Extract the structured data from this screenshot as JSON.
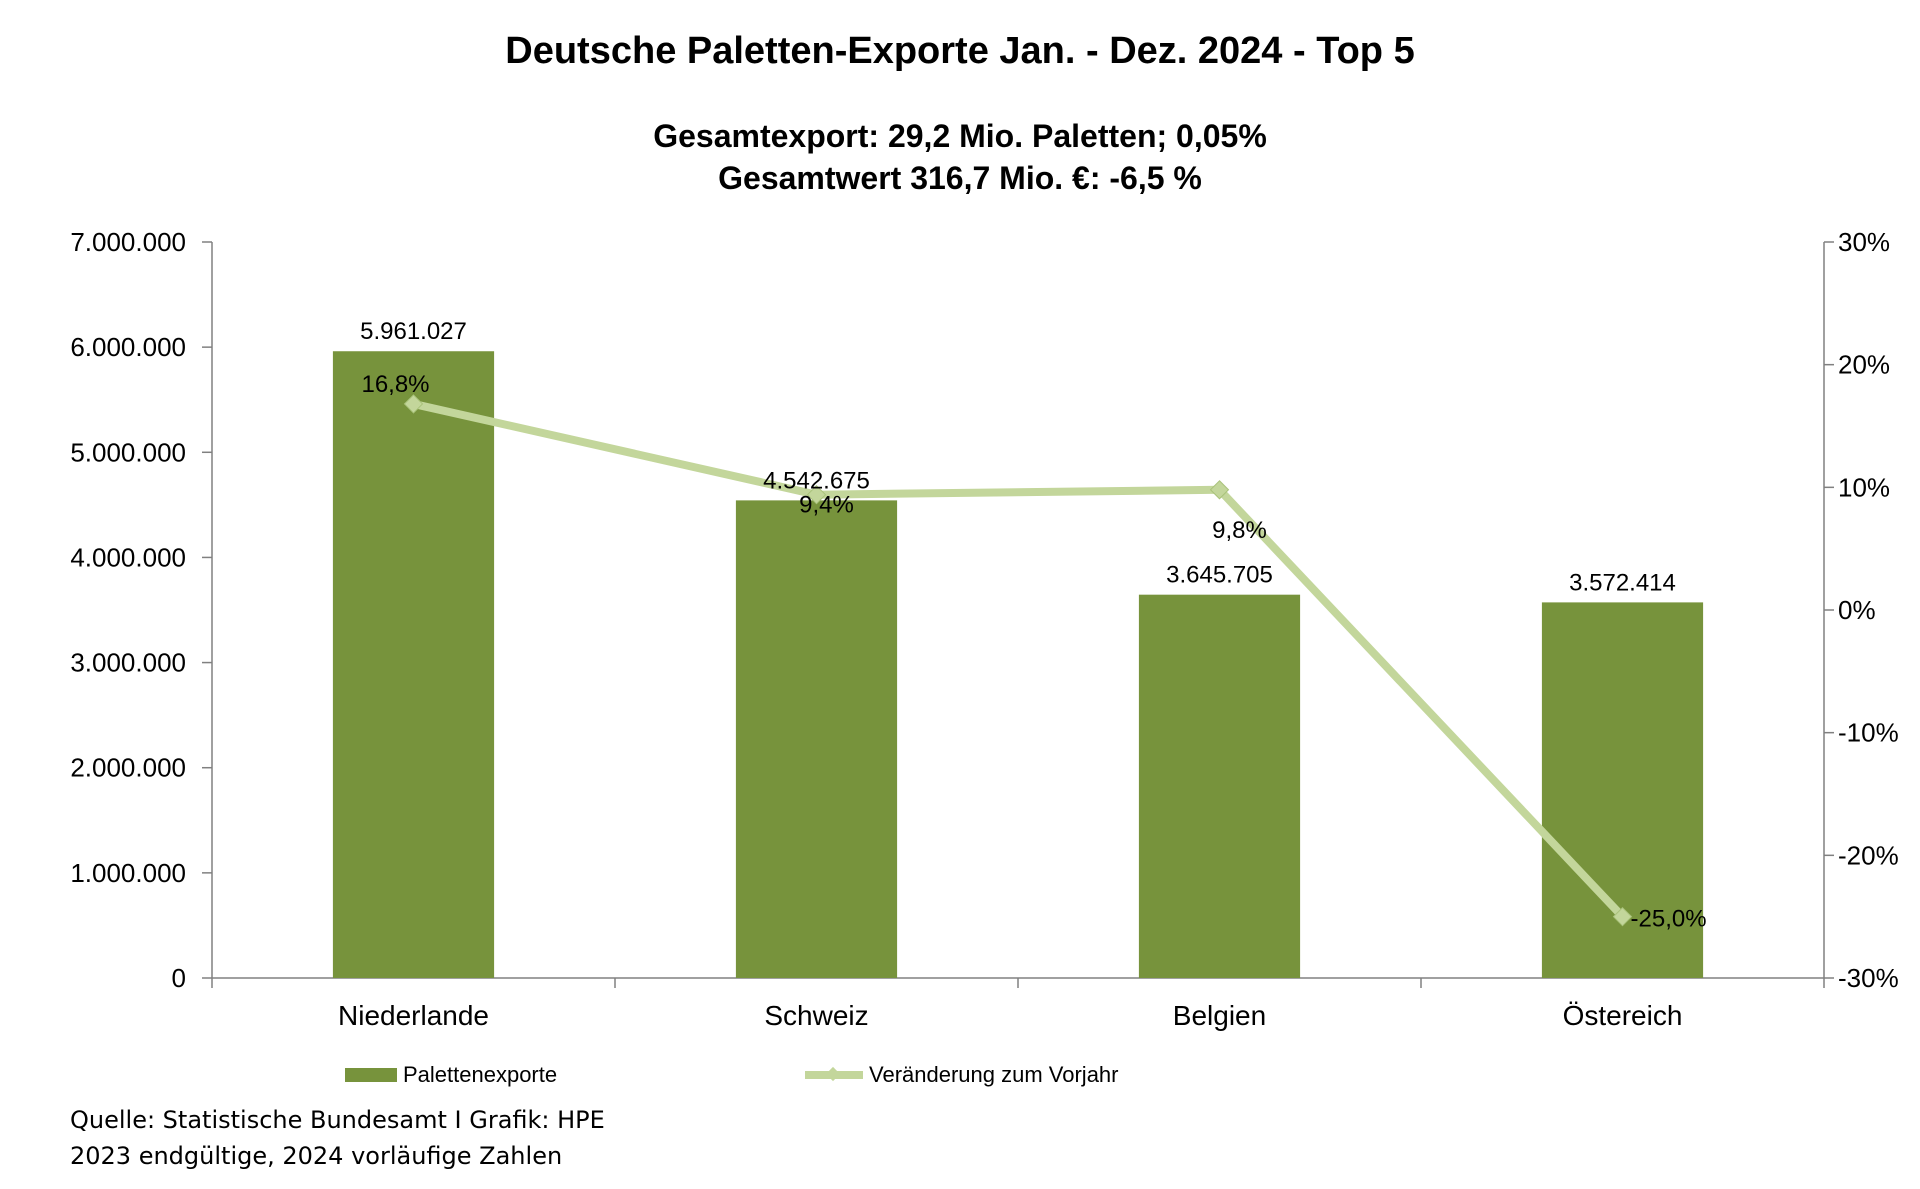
{
  "chart_data": {
    "type": "bar",
    "title": "Deutsche Paletten-Exporte Jan. - Dez. 2024 - Top 5",
    "subtitle_lines": [
      "Gesamtexport: 29,2 Mio. Paletten; 0,05%",
      "Gesamtwert 316,7 Mio. €: -6,5  %"
    ],
    "categories": [
      "Niederlande",
      "Schweiz",
      "Belgien",
      "Östereich"
    ],
    "series": [
      {
        "name": "Palettenexporte",
        "type": "bar",
        "axis": "left",
        "color": "#77933c",
        "values": [
          5961027,
          4542675,
          3645705,
          3572414
        ],
        "labels": [
          "5.961.027",
          "4.542.675",
          "3.645.705",
          "3.572.414"
        ]
      },
      {
        "name": "Veränderung zum Vorjahr",
        "type": "line",
        "axis": "right",
        "color": "#c3d69b",
        "values": [
          16.8,
          9.4,
          9.8,
          -25.0
        ],
        "labels": [
          "16,8%",
          "9,4%",
          "9,8%",
          "-25,0%"
        ]
      }
    ],
    "y_left": {
      "range": [
        0,
        7000000
      ],
      "ticks": [
        0,
        1000000,
        2000000,
        3000000,
        4000000,
        5000000,
        6000000,
        7000000
      ],
      "tick_labels": [
        "0",
        "1.000.000",
        "2.000.000",
        "3.000.000",
        "4.000.000",
        "5.000.000",
        "6.000.000",
        "7.000.000"
      ]
    },
    "y_right": {
      "range": [
        -30,
        30
      ],
      "ticks": [
        -30,
        -20,
        -10,
        0,
        10,
        20,
        30
      ],
      "tick_labels": [
        "-30%",
        "-20%",
        "-10%",
        "0%",
        "10%",
        "20%",
        "30%"
      ]
    },
    "grid": false,
    "legend_position": "bottom",
    "axis_color": "#808080"
  },
  "footnotes": [
    "Quelle: Statistische Bundesamt I Grafik: HPE",
    "2023 endgültige, 2024 vorläufige Zahlen"
  ]
}
